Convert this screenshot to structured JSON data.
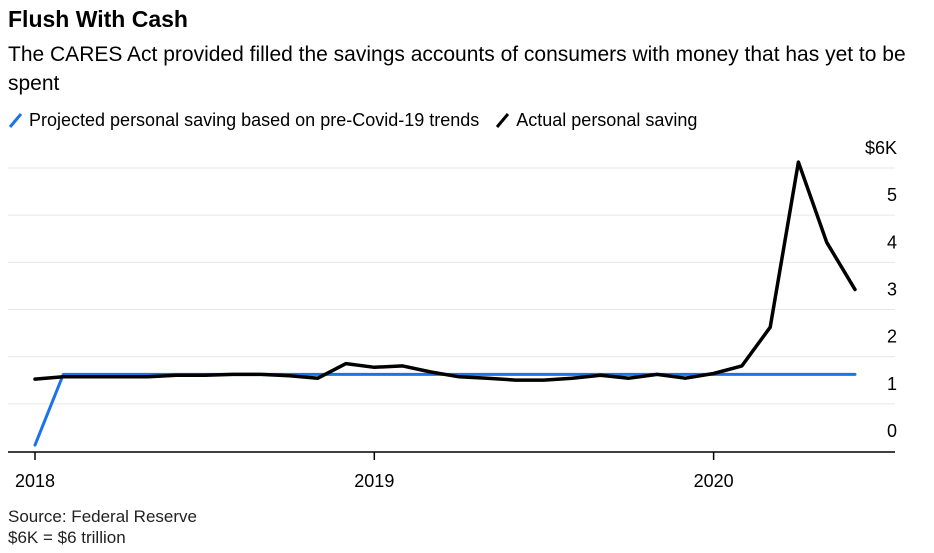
{
  "header": {
    "title": "Flush With Cash",
    "subtitle": "The CARES Act provided filled the savings accounts of consumers with money that has yet to be spent"
  },
  "legend": {
    "projected": "Projected personal saving based on pre-Covid-19 trends",
    "actual": "Actual personal saving"
  },
  "footer": {
    "source": "Source: Federal Reserve",
    "note": "$6K = $6 trillion"
  },
  "colors": {
    "projected": "#1a73e8",
    "actual": "#000000",
    "grid": "#e6e6e6"
  },
  "chart_data": {
    "type": "line",
    "title": "Flush With Cash",
    "xlabel": "",
    "ylabel": "",
    "xlim": [
      "2018-01",
      "2020-06"
    ],
    "ylim": [
      0,
      6
    ],
    "yticks": [
      0,
      1,
      2,
      3,
      4,
      5,
      6
    ],
    "ytick_labels": [
      "0",
      "1",
      "2",
      "3",
      "4",
      "5",
      "$6K"
    ],
    "xticks": [
      "2018-01",
      "2019-01",
      "2020-01"
    ],
    "xtick_labels": [
      "2018",
      "2019",
      "2020"
    ],
    "grid": true,
    "legend_position": "top-left",
    "series": [
      {
        "name": "Projected personal saving based on pre-Covid-19 trends",
        "x": [
          "2018-01",
          "2018-02",
          "2018-03",
          "2018-04",
          "2018-05",
          "2018-06",
          "2018-07",
          "2018-08",
          "2018-09",
          "2018-10",
          "2018-11",
          "2018-12",
          "2019-01",
          "2019-02",
          "2019-03",
          "2019-04",
          "2019-05",
          "2019-06",
          "2019-07",
          "2019-08",
          "2019-09",
          "2019-10",
          "2019-11",
          "2019-12",
          "2020-01",
          "2020-02",
          "2020-03",
          "2020-04",
          "2020-05",
          "2020-06"
        ],
        "values": [
          -0.3,
          1.2,
          1.2,
          1.2,
          1.2,
          1.2,
          1.2,
          1.2,
          1.2,
          1.2,
          1.2,
          1.2,
          1.2,
          1.2,
          1.2,
          1.2,
          1.2,
          1.2,
          1.2,
          1.2,
          1.2,
          1.2,
          1.2,
          1.2,
          1.2,
          1.2,
          1.2,
          1.2,
          1.2,
          1.2
        ]
      },
      {
        "name": "Actual personal saving",
        "x": [
          "2018-01",
          "2018-02",
          "2018-03",
          "2018-04",
          "2018-05",
          "2018-06",
          "2018-07",
          "2018-08",
          "2018-09",
          "2018-10",
          "2018-11",
          "2018-12",
          "2019-01",
          "2019-02",
          "2019-03",
          "2019-04",
          "2019-05",
          "2019-06",
          "2019-07",
          "2019-08",
          "2019-09",
          "2019-10",
          "2019-11",
          "2019-12",
          "2020-01",
          "2020-02",
          "2020-03",
          "2020-04",
          "2020-05",
          "2020-06"
        ],
        "values": [
          1.1,
          1.15,
          1.15,
          1.15,
          1.15,
          1.18,
          1.18,
          1.2,
          1.2,
          1.17,
          1.12,
          1.43,
          1.35,
          1.38,
          1.25,
          1.15,
          1.12,
          1.08,
          1.08,
          1.12,
          1.18,
          1.12,
          1.2,
          1.12,
          1.22,
          1.38,
          2.2,
          5.7,
          4.0,
          3.0
        ]
      }
    ]
  }
}
